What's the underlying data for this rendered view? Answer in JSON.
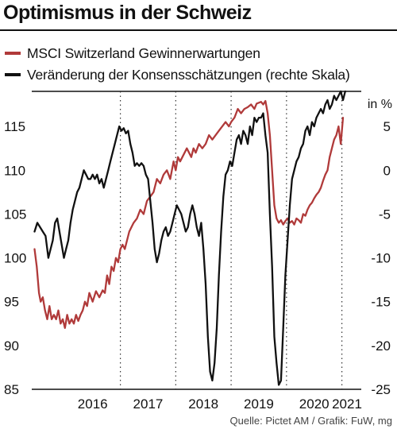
{
  "title": "Optimismus in der Schweiz",
  "source": "Quelle: Pictet AM / Grafik: FuW, mg",
  "colors": {
    "series1": "#b03a3a",
    "series2": "#111111",
    "grid": "#333333"
  },
  "chart_data": {
    "type": "line",
    "title": "Optimismus in der Schweiz",
    "x_ticks": [
      "2016",
      "2017",
      "2018",
      "2019",
      "2020",
      "2021"
    ],
    "left_axis": {
      "ticks": [
        "85",
        "90",
        "95",
        "100",
        "105",
        "110",
        "115"
      ],
      "ylim": [
        85,
        119
      ]
    },
    "right_axis": {
      "label": "in %",
      "ticks": [
        "5",
        "0",
        "-5",
        "-10",
        "-15",
        "-20",
        "-25"
      ],
      "ylim": [
        -25,
        9
      ]
    },
    "xlim": [
      2015.4,
      2021.35
    ],
    "grid": "vertical dotted at year boundaries",
    "legend_position": "top",
    "series": [
      {
        "name": "MSCI Switzerland Gewinnerwartungen",
        "axis": "left",
        "color": "#b03a3a",
        "x": [
          2015.45,
          2015.49,
          2015.53,
          2015.56,
          2015.6,
          2015.64,
          2015.68,
          2015.72,
          2015.76,
          2015.8,
          2015.84,
          2015.88,
          2015.92,
          2015.96,
          2016.0,
          2016.04,
          2016.08,
          2016.12,
          2016.16,
          2016.2,
          2016.24,
          2016.28,
          2016.32,
          2016.36,
          2016.4,
          2016.44,
          2016.5,
          2016.56,
          2016.62,
          2016.68,
          2016.72,
          2016.76,
          2016.8,
          2016.84,
          2016.88,
          2016.92,
          2016.96,
          2017.0,
          2017.04,
          2017.08,
          2017.12,
          2017.16,
          2017.2,
          2017.24,
          2017.3,
          2017.36,
          2017.42,
          2017.48,
          2017.54,
          2017.6,
          2017.66,
          2017.72,
          2017.78,
          2017.84,
          2017.9,
          2017.96,
          2018.0,
          2018.04,
          2018.08,
          2018.12,
          2018.16,
          2018.2,
          2018.24,
          2018.28,
          2018.32,
          2018.36,
          2018.42,
          2018.48,
          2018.54,
          2018.6,
          2018.66,
          2018.72,
          2018.78,
          2018.84,
          2018.9,
          2018.96,
          2019.0,
          2019.06,
          2019.12,
          2019.18,
          2019.24,
          2019.3,
          2019.36,
          2019.42,
          2019.46,
          2019.5,
          2019.54,
          2019.58,
          2019.62,
          2019.66,
          2019.7,
          2019.74,
          2019.78,
          2019.82,
          2019.86,
          2019.9,
          2019.94,
          2019.98,
          2020.02,
          2020.06,
          2020.1,
          2020.14,
          2020.18,
          2020.22,
          2020.26,
          2020.3,
          2020.34,
          2020.38,
          2020.42,
          2020.46,
          2020.5,
          2020.54,
          2020.58,
          2020.62,
          2020.66,
          2020.7,
          2020.74,
          2020.78,
          2020.82,
          2020.86,
          2020.9,
          2020.94,
          2020.98,
          2021.02
        ],
        "y": [
          101.0,
          99.0,
          96.0,
          95.0,
          95.5,
          94.0,
          93.0,
          94.5,
          93.0,
          93.5,
          93.0,
          94.0,
          92.5,
          93.0,
          92.0,
          93.5,
          92.5,
          93.0,
          92.5,
          93.5,
          92.8,
          93.5,
          94.0,
          95.0,
          94.5,
          96.0,
          95.0,
          96.2,
          95.5,
          96.3,
          96.0,
          98.0,
          97.0,
          99.0,
          98.5,
          100.0,
          99.5,
          101.0,
          101.5,
          101.0,
          102.0,
          103.0,
          103.5,
          104.0,
          104.5,
          105.5,
          105.0,
          106.5,
          107.0,
          107.5,
          109.0,
          108.5,
          109.5,
          110.0,
          109.0,
          111.0,
          110.0,
          111.5,
          111.0,
          111.5,
          112.0,
          112.5,
          112.0,
          111.5,
          112.5,
          112.0,
          113.0,
          112.5,
          113.0,
          114.0,
          113.5,
          114.0,
          114.5,
          115.0,
          115.5,
          115.0,
          115.5,
          116.0,
          117.0,
          116.5,
          117.0,
          117.2,
          117.5,
          117.0,
          117.6,
          117.7,
          117.8,
          117.5,
          117.9,
          116.5,
          114.0,
          110.0,
          106.0,
          104.5,
          104.0,
          104.3,
          103.8,
          104.2,
          104.5,
          104.0,
          104.2,
          103.8,
          104.5,
          104.3,
          104.0,
          105.0,
          104.8,
          105.5,
          106.0,
          106.3,
          106.8,
          107.2,
          107.5,
          108.0,
          108.8,
          109.5,
          110.0,
          111.5,
          112.5,
          113.5,
          114.0,
          115.0,
          113.0,
          116.0
        ]
      },
      {
        "name": "Veränderung der Konsensschätzungen (rechte Skala)",
        "axis": "right",
        "color": "#111111",
        "x": [
          2015.45,
          2015.5,
          2015.55,
          2015.6,
          2015.65,
          2015.7,
          2015.74,
          2015.78,
          2015.82,
          2015.86,
          2015.9,
          2015.94,
          2015.98,
          2016.02,
          2016.06,
          2016.1,
          2016.14,
          2016.18,
          2016.22,
          2016.26,
          2016.3,
          2016.34,
          2016.38,
          2016.42,
          2016.46,
          2016.5,
          2016.54,
          2016.58,
          2016.62,
          2016.66,
          2016.7,
          2016.74,
          2016.78,
          2016.82,
          2016.86,
          2016.9,
          2016.94,
          2016.98,
          2017.02,
          2017.06,
          2017.1,
          2017.14,
          2017.18,
          2017.22,
          2017.26,
          2017.3,
          2017.34,
          2017.38,
          2017.42,
          2017.46,
          2017.5,
          2017.54,
          2017.58,
          2017.62,
          2017.66,
          2017.7,
          2017.74,
          2017.78,
          2017.82,
          2017.86,
          2017.9,
          2017.94,
          2017.98,
          2018.02,
          2018.06,
          2018.1,
          2018.14,
          2018.18,
          2018.22,
          2018.26,
          2018.3,
          2018.34,
          2018.38,
          2018.42,
          2018.46,
          2018.5,
          2018.54,
          2018.58,
          2018.62,
          2018.66,
          2018.7,
          2018.74,
          2018.78,
          2018.82,
          2018.86,
          2018.9,
          2018.94,
          2018.98,
          2019.02,
          2019.06,
          2019.1,
          2019.14,
          2019.18,
          2019.22,
          2019.26,
          2019.3,
          2019.34,
          2019.38,
          2019.42,
          2019.46,
          2019.5,
          2019.54,
          2019.58,
          2019.62,
          2019.66,
          2019.7,
          2019.74,
          2019.78,
          2019.82,
          2019.86,
          2019.9,
          2019.94,
          2019.98,
          2020.02,
          2020.06,
          2020.1,
          2020.14,
          2020.18,
          2020.22,
          2020.26,
          2020.3,
          2020.34,
          2020.38,
          2020.42,
          2020.46,
          2020.5,
          2020.54,
          2020.58,
          2020.62,
          2020.66,
          2020.7,
          2020.74,
          2020.78,
          2020.82,
          2020.86,
          2020.9,
          2020.94,
          2020.98,
          2021.02,
          2021.06
        ],
        "y": [
          -7.0,
          -6.0,
          -6.5,
          -7.0,
          -7.5,
          -10.0,
          -9.0,
          -8.0,
          -6.0,
          -5.5,
          -7.0,
          -8.5,
          -10.0,
          -9.0,
          -8.0,
          -6.0,
          -4.5,
          -3.5,
          -2.5,
          -2.0,
          -1.0,
          0.0,
          -0.5,
          -1.0,
          -1.0,
          -0.5,
          -1.0,
          -0.5,
          -1.5,
          -1.0,
          -2.0,
          -1.0,
          0.0,
          1.0,
          2.0,
          3.0,
          4.0,
          5.0,
          4.5,
          4.8,
          4.2,
          4.5,
          3.0,
          2.0,
          0.5,
          0.8,
          0.5,
          0.8,
          0.5,
          -0.5,
          -1.0,
          -3.5,
          -6.0,
          -9.0,
          -10.5,
          -9.5,
          -8.0,
          -7.0,
          -6.5,
          -7.5,
          -7.0,
          -6.0,
          -5.0,
          -4.0,
          -4.5,
          -5.0,
          -6.0,
          -7.0,
          -6.5,
          -5.0,
          -4.0,
          -5.0,
          -6.5,
          -7.5,
          -6.0,
          -9.0,
          -13.0,
          -19.0,
          -23.0,
          -24.0,
          -22.0,
          -18.0,
          -12.0,
          -7.0,
          -3.0,
          -0.5,
          0.0,
          1.0,
          0.5,
          2.0,
          3.5,
          4.0,
          3.0,
          4.5,
          4.0,
          3.0,
          5.0,
          4.0,
          6.0,
          5.5,
          6.0,
          6.0,
          6.5,
          4.0,
          2.0,
          -5.0,
          -11.0,
          -19.0,
          -22.0,
          -24.5,
          -24.0,
          -18.0,
          -12.0,
          -8.0,
          -4.0,
          -1.0,
          0.0,
          1.0,
          1.5,
          2.5,
          3.0,
          4.5,
          5.0,
          4.0,
          5.5,
          5.0,
          6.0,
          6.5,
          7.0,
          6.5,
          7.5,
          8.0,
          7.0,
          7.5,
          8.5,
          8.0,
          8.5,
          9.0,
          8.0,
          9.0
        ]
      }
    ]
  }
}
